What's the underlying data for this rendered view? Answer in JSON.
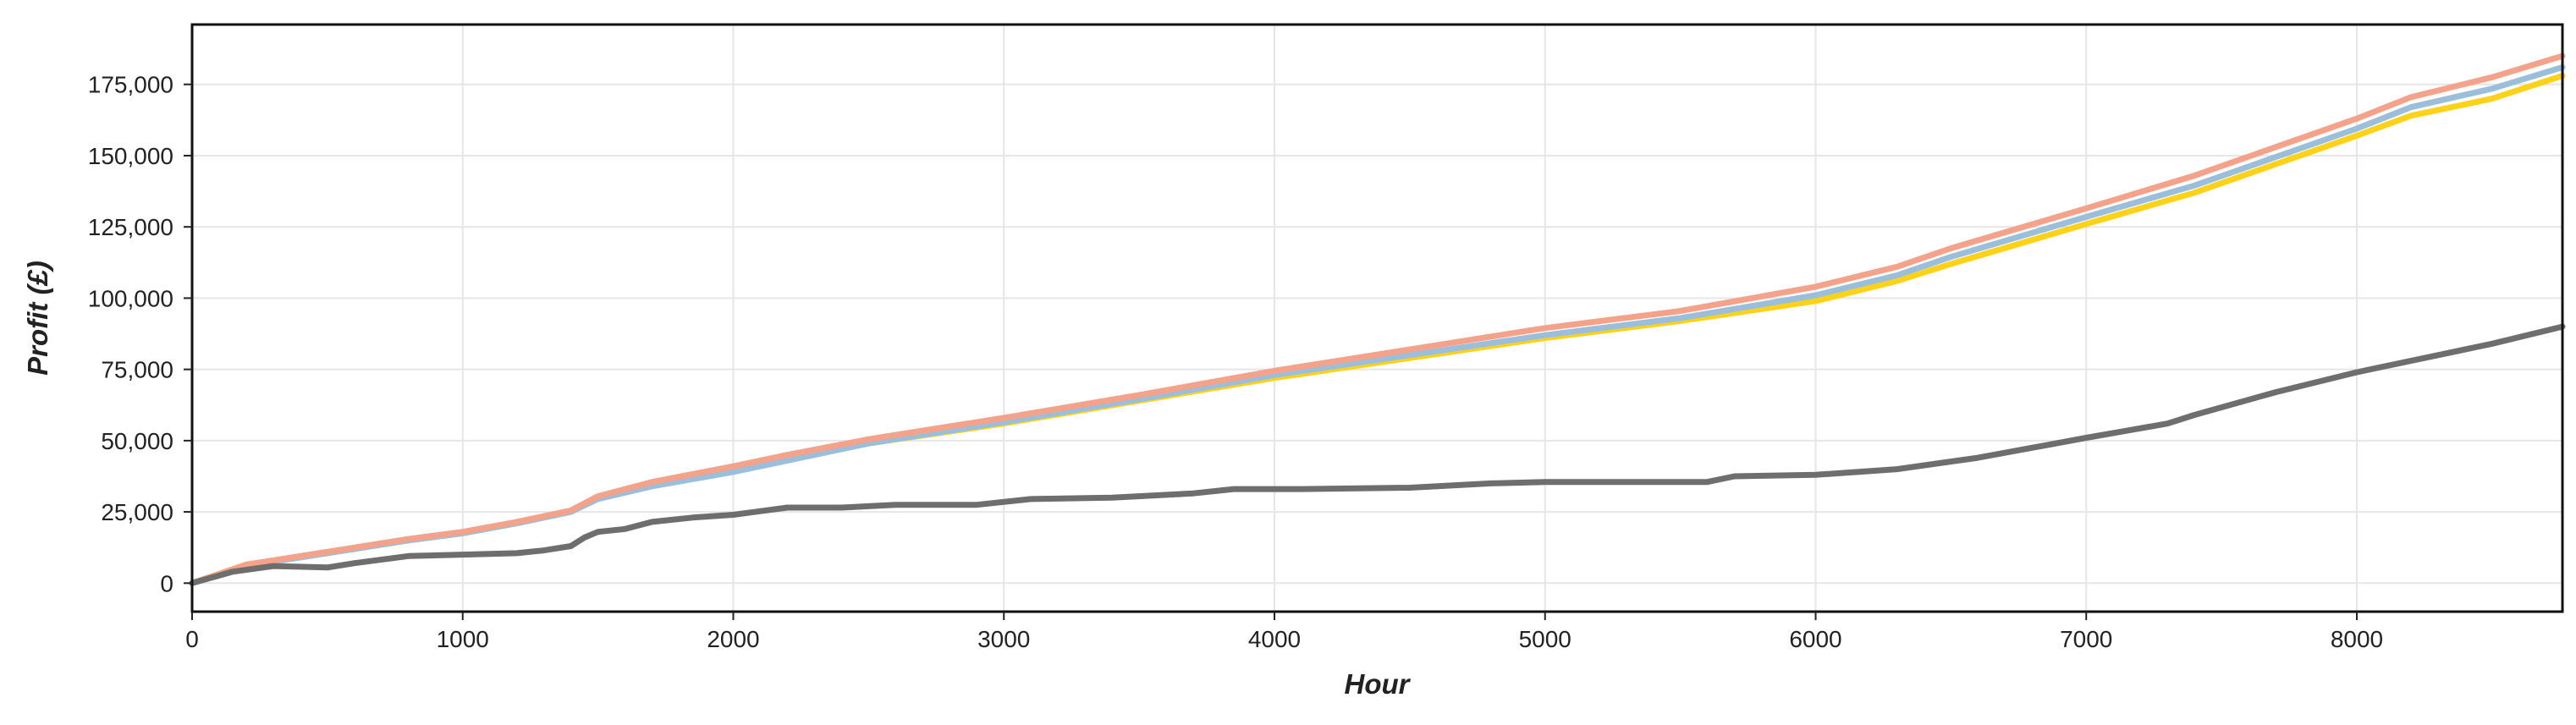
{
  "chart_data": {
    "type": "line",
    "title": "",
    "xlabel": "Hour",
    "ylabel": "Profit (£)",
    "xlim": [
      0,
      8760
    ],
    "ylim": [
      -10000,
      196000
    ],
    "grid": true,
    "x_ticks": [
      0,
      1000,
      2000,
      3000,
      4000,
      5000,
      6000,
      7000,
      8000
    ],
    "x_tick_labels": [
      "0",
      "1000",
      "2000",
      "3000",
      "4000",
      "5000",
      "6000",
      "7000",
      "8000"
    ],
    "y_ticks": [
      0,
      25000,
      50000,
      75000,
      100000,
      125000,
      150000,
      175000
    ],
    "y_tick_labels": [
      "0",
      "25,000",
      "50,000",
      "75,000",
      "100,000",
      "125,000",
      "150,000",
      "175,000"
    ],
    "series": [
      {
        "color": "#ffd21a",
        "x": [
          0,
          200,
          500,
          800,
          1000,
          1200,
          1400,
          1500,
          1700,
          2000,
          2200,
          2500,
          3000,
          3500,
          4000,
          4500,
          5000,
          5500,
          6000,
          6300,
          6500,
          7000,
          7400,
          8000,
          8200,
          8500,
          8760
        ],
        "y": [
          0,
          6500,
          10500,
          15000,
          17500,
          21000,
          25000,
          30000,
          35000,
          40000,
          44000,
          49000,
          56000,
          64000,
          72000,
          79000,
          86000,
          92000,
          99000,
          106000,
          112000,
          126000,
          137000,
          157000,
          164000,
          170000,
          178000
        ]
      },
      {
        "color": "#9bbfda",
        "x": [
          0,
          200,
          500,
          800,
          1000,
          1200,
          1400,
          1500,
          1700,
          2000,
          2200,
          2500,
          3000,
          3500,
          4000,
          4500,
          5000,
          5500,
          6000,
          6300,
          6500,
          7000,
          7400,
          8000,
          8200,
          8500,
          8760
        ],
        "y": [
          0,
          6000,
          10500,
          15000,
          17500,
          21000,
          25000,
          29500,
          34000,
          39000,
          43000,
          49000,
          56500,
          64500,
          73000,
          80000,
          87000,
          93000,
          101000,
          108000,
          114500,
          128500,
          139500,
          159500,
          167000,
          173500,
          181000
        ]
      },
      {
        "color": "#f4a28a",
        "x": [
          0,
          200,
          500,
          800,
          1000,
          1200,
          1400,
          1500,
          1700,
          2000,
          2200,
          2500,
          3000,
          3500,
          4000,
          4500,
          5000,
          5500,
          6000,
          6300,
          6500,
          7000,
          7400,
          8000,
          8200,
          8500,
          8760
        ],
        "y": [
          0,
          6500,
          11000,
          15500,
          18000,
          21500,
          25500,
          30500,
          35500,
          41000,
          45000,
          50500,
          58000,
          66000,
          74500,
          82000,
          89500,
          95500,
          104000,
          111000,
          117500,
          131500,
          143000,
          163000,
          170500,
          177500,
          185000
        ]
      },
      {
        "color": "#6e6e6e",
        "x": [
          0,
          150,
          300,
          500,
          600,
          800,
          1000,
          1200,
          1300,
          1400,
          1450,
          1500,
          1600,
          1700,
          1850,
          2000,
          2200,
          2400,
          2600,
          2900,
          3100,
          3400,
          3700,
          3850,
          4100,
          4500,
          4800,
          5000,
          5300,
          5600,
          5700,
          6000,
          6300,
          6600,
          7000,
          7300,
          7400,
          7700,
          8000,
          8300,
          8500,
          8760
        ],
        "y": [
          0,
          4000,
          6000,
          5500,
          7000,
          9500,
          10000,
          10500,
          11500,
          13000,
          16000,
          18000,
          19000,
          21500,
          23000,
          24000,
          26500,
          26500,
          27500,
          27500,
          29500,
          30000,
          31500,
          33000,
          33000,
          33500,
          35000,
          35500,
          35500,
          35500,
          37500,
          38000,
          40000,
          44000,
          51000,
          56000,
          59000,
          67000,
          74000,
          80000,
          84000,
          90000
        ]
      }
    ]
  }
}
